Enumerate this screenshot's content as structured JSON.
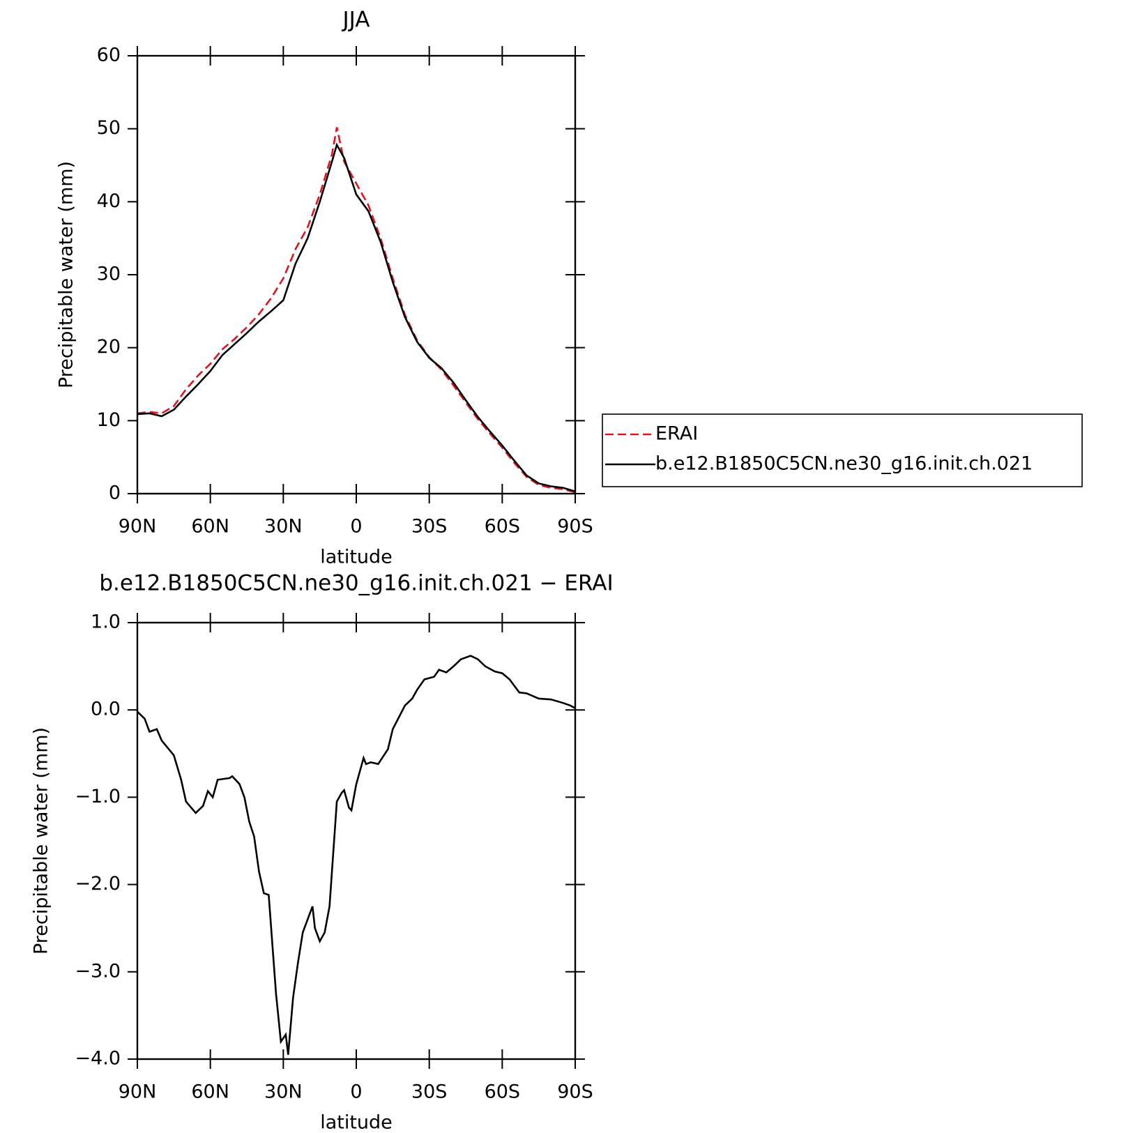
{
  "chart_data": [
    {
      "type": "line",
      "title": "JJA",
      "xlabel": "latitude",
      "ylabel": "Precipitable water (mm)",
      "x": [
        90,
        85,
        80,
        75,
        70,
        65,
        60,
        55,
        50,
        45,
        40,
        35,
        30,
        25,
        20,
        15,
        10,
        8,
        5,
        0,
        -5,
        -10,
        -15,
        -20,
        -25,
        -30,
        -35,
        -40,
        -45,
        -50,
        -55,
        -60,
        -65,
        -70,
        -75,
        -80,
        -85,
        -90
      ],
      "series": [
        {
          "name": "ERAI",
          "color": "#e0141e",
          "line_style": "dashed",
          "values": [
            11.0,
            11.2,
            11.0,
            12.0,
            14.3,
            16.2,
            17.8,
            19.8,
            21.2,
            22.8,
            24.6,
            26.8,
            29.5,
            33.5,
            36.5,
            41,
            46.5,
            50.2,
            45.5,
            42.5,
            39.5,
            35.0,
            29.5,
            24.5,
            21.0,
            18.7,
            17.0,
            14.8,
            12.5,
            10.2,
            8.2,
            6.3,
            4.2,
            2.3,
            1.2,
            0.8,
            0.6,
            0.2
          ]
        },
        {
          "name": "b.e12.B1850C5CN.ne30_g16.init.ch.021",
          "color": "#000000",
          "line_style": "solid",
          "values": [
            10.9,
            11.0,
            10.6,
            11.5,
            13.3,
            15.0,
            16.8,
            19.0,
            20.5,
            22.0,
            23.6,
            25.0,
            26.5,
            31.5,
            35,
            40,
            45.5,
            47.8,
            46.0,
            41,
            38.7,
            34.5,
            29,
            24.2,
            20.8,
            18.6,
            17.2,
            15.2,
            12.8,
            10.5,
            8.5,
            6.6,
            4.5,
            2.5,
            1.4,
            1.0,
            0.8,
            0.3
          ]
        }
      ],
      "xlim": [
        90,
        -90
      ],
      "xticks": [
        {
          "value": 90,
          "label": "90N"
        },
        {
          "value": 60,
          "label": "60N"
        },
        {
          "value": 30,
          "label": "30N"
        },
        0,
        {
          "value": -30,
          "label": "30S"
        },
        {
          "value": -60,
          "label": "60S"
        },
        {
          "value": -90,
          "label": "90S"
        }
      ],
      "ylim": [
        0,
        60
      ],
      "yticks": [
        0,
        10,
        20,
        30,
        40,
        50,
        60
      ],
      "legend": "right"
    },
    {
      "type": "line",
      "title": "b.e12.B1850C5CN.ne30_g16.init.ch.021 − ERAI",
      "xlabel": "latitude",
      "ylabel": "Precipitable water (mm)",
      "x": [
        90,
        87,
        85,
        82,
        80,
        75,
        72,
        70,
        66,
        63,
        61,
        59,
        57,
        52,
        51,
        48,
        46,
        44,
        42,
        40,
        38,
        36,
        33,
        31,
        29,
        28,
        26,
        24,
        22,
        20,
        18,
        17,
        15,
        13,
        11,
        8,
        6,
        5,
        3,
        2,
        0,
        -3,
        -4,
        -6,
        -9,
        -13,
        -15,
        -20,
        -23,
        -25,
        -28,
        -32,
        -34,
        -37,
        -40,
        -43,
        -47,
        -50,
        -53,
        -57,
        -60,
        -63,
        -67,
        -70,
        -75,
        -80,
        -85,
        -88,
        -90
      ],
      "series": [
        {
          "color": "#000000",
          "line_style": "solid",
          "values": [
            -0.02,
            -0.1,
            -0.25,
            -0.22,
            -0.35,
            -0.52,
            -0.8,
            -1.05,
            -1.18,
            -1.1,
            -0.93,
            -1.0,
            -0.8,
            -0.78,
            -0.76,
            -0.85,
            -1.0,
            -1.28,
            -1.45,
            -1.85,
            -2.1,
            -2.12,
            -3.25,
            -3.8,
            -3.72,
            -3.95,
            -3.3,
            -2.9,
            -2.55,
            -2.4,
            -2.25,
            -2.5,
            -2.65,
            -2.55,
            -2.25,
            -1.05,
            -0.95,
            -0.92,
            -1.12,
            -1.15,
            -0.85,
            -0.55,
            -0.62,
            -0.6,
            -0.62,
            -0.45,
            -0.22,
            0.05,
            0.13,
            0.23,
            0.35,
            0.38,
            0.46,
            0.43,
            0.5,
            0.58,
            0.62,
            0.58,
            0.5,
            0.44,
            0.42,
            0.35,
            0.2,
            0.19,
            0.13,
            0.12,
            0.08,
            0.05,
            0.02
          ]
        }
      ],
      "xlim": [
        90,
        -90
      ],
      "xticks": [
        {
          "value": 90,
          "label": "90N"
        },
        {
          "value": 60,
          "label": "60N"
        },
        {
          "value": 30,
          "label": "30N"
        },
        0,
        {
          "value": -30,
          "label": "30S"
        },
        {
          "value": -60,
          "label": "60S"
        },
        {
          "value": -90,
          "label": "90S"
        }
      ],
      "ylim": [
        -4,
        1
      ],
      "yticks": [
        {
          "value": -4,
          "label": "−4.0"
        },
        {
          "value": -3,
          "label": "−3.0"
        },
        {
          "value": -2,
          "label": "−2.0"
        },
        {
          "value": -1,
          "label": "−1.0"
        },
        {
          "value": 0,
          "label": "0.0"
        },
        {
          "value": 1,
          "label": "1.0"
        }
      ]
    }
  ]
}
